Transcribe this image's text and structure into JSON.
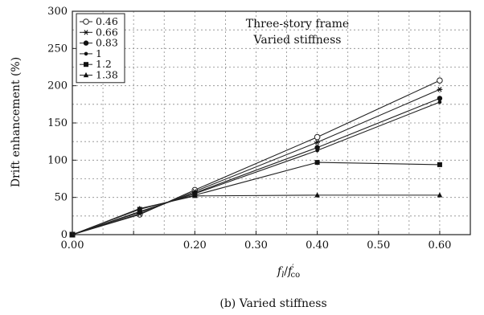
{
  "chart_data": {
    "type": "line",
    "title": "",
    "annotations": [
      "Three-story frame",
      "Varied stiffness"
    ],
    "caption": "(b) Varied stiffness",
    "xlabel": {
      "main": "f",
      "sub1": "l",
      "slash": "/",
      "main2": "f",
      "prime": "′",
      "sub2": "co"
    },
    "ylabel": "Drift enhancement (%)",
    "xlim": [
      0,
      0.65
    ],
    "ylim": [
      0,
      300
    ],
    "xticks": [
      0,
      0.1,
      0.2,
      0.3,
      0.4,
      0.5,
      0.6
    ],
    "xtick_labels": [
      "0.00",
      "",
      "0.20",
      "0.30",
      "0.40",
      "0.50",
      "0.60"
    ],
    "yticks": [
      0,
      50,
      100,
      150,
      200,
      250,
      300
    ],
    "ytick_labels": [
      "0",
      "50",
      "100",
      "150",
      "200",
      "250",
      "300"
    ],
    "grid": true,
    "legend_position": "top-left",
    "x": [
      0,
      0.11,
      0.2,
      0.4,
      0.6
    ],
    "series": [
      {
        "name": "0.46",
        "marker": "open-circle",
        "values": [
          0,
          27,
          60,
          131,
          207
        ]
      },
      {
        "name": "0.66",
        "marker": "asterisk",
        "values": [
          0,
          28,
          58,
          124,
          195
        ]
      },
      {
        "name": "0.83",
        "marker": "filled-circle",
        "values": [
          0,
          30,
          56,
          117,
          183
        ]
      },
      {
        "name": "1",
        "marker": "dot",
        "values": [
          0,
          31,
          55,
          113,
          178
        ]
      },
      {
        "name": "1.2",
        "marker": "square",
        "values": [
          0,
          34,
          53,
          97,
          94
        ]
      },
      {
        "name": "1.38",
        "marker": "triangle",
        "values": [
          0,
          35,
          52,
          53,
          53
        ]
      }
    ]
  }
}
